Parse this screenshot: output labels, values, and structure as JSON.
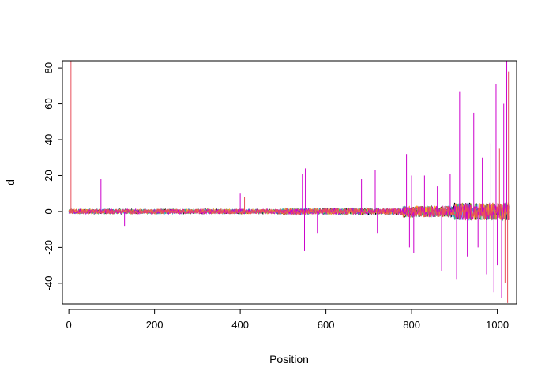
{
  "chart_data": {
    "type": "line",
    "title": "",
    "xlabel": "Position",
    "ylabel": "d",
    "xlim": [
      -15,
      1045
    ],
    "ylim": [
      -51.5,
      84
    ],
    "x_ticks": [
      0,
      200,
      400,
      600,
      800,
      1000
    ],
    "y_ticks": [
      -40,
      -20,
      0,
      20,
      40,
      60,
      80
    ],
    "x_tick_labels": [
      "0",
      "200",
      "400",
      "600",
      "800",
      "1000"
    ],
    "y_tick_labels": [
      "-40",
      "-20",
      "0",
      "20",
      "40",
      "60",
      "80"
    ],
    "n_positions": 1028,
    "grid": false,
    "legend": "none",
    "baseline_level": 0,
    "series": [
      {
        "color": "#000000"
      },
      {
        "color": "#2e9fdf"
      },
      {
        "color": "#3cb371"
      },
      {
        "color": "#f5a623"
      },
      {
        "color": "#cc00cc"
      },
      {
        "color": "#e8505b"
      }
    ],
    "spikes": [
      {
        "x": 5,
        "y": 84,
        "series": 5
      },
      {
        "x": 75,
        "y": 18,
        "series": 4
      },
      {
        "x": 130,
        "y": -8,
        "series": 4
      },
      {
        "x": 400,
        "y": 10,
        "series": 4
      },
      {
        "x": 410,
        "y": 8,
        "series": 5
      },
      {
        "x": 545,
        "y": 21,
        "series": 4
      },
      {
        "x": 550,
        "y": -22,
        "series": 4
      },
      {
        "x": 552,
        "y": 24,
        "series": 4
      },
      {
        "x": 580,
        "y": -12,
        "series": 4
      },
      {
        "x": 683,
        "y": 18,
        "series": 4
      },
      {
        "x": 715,
        "y": 23,
        "series": 4
      },
      {
        "x": 720,
        "y": -12,
        "series": 4
      },
      {
        "x": 788,
        "y": 32,
        "series": 4
      },
      {
        "x": 795,
        "y": -20,
        "series": 4
      },
      {
        "x": 800,
        "y": 20,
        "series": 4
      },
      {
        "x": 805,
        "y": -23,
        "series": 4
      },
      {
        "x": 830,
        "y": 20,
        "series": 4
      },
      {
        "x": 845,
        "y": -18,
        "series": 4
      },
      {
        "x": 860,
        "y": 14,
        "series": 4
      },
      {
        "x": 870,
        "y": -33,
        "series": 4
      },
      {
        "x": 890,
        "y": 21,
        "series": 4
      },
      {
        "x": 905,
        "y": -38,
        "series": 4
      },
      {
        "x": 912,
        "y": 67,
        "series": 4
      },
      {
        "x": 930,
        "y": -25,
        "series": 4
      },
      {
        "x": 945,
        "y": 55,
        "series": 4
      },
      {
        "x": 955,
        "y": -20,
        "series": 4
      },
      {
        "x": 965,
        "y": 30,
        "series": 4
      },
      {
        "x": 975,
        "y": -35,
        "series": 4
      },
      {
        "x": 985,
        "y": 38,
        "series": 4
      },
      {
        "x": 992,
        "y": -45,
        "series": 4
      },
      {
        "x": 997,
        "y": 71,
        "series": 4
      },
      {
        "x": 1000,
        "y": -30,
        "series": 4
      },
      {
        "x": 1005,
        "y": 35,
        "series": 5
      },
      {
        "x": 1010,
        "y": -48,
        "series": 4
      },
      {
        "x": 1015,
        "y": 60,
        "series": 4
      },
      {
        "x": 1018,
        "y": -40,
        "series": 5
      },
      {
        "x": 1022,
        "y": 84,
        "series": 4
      },
      {
        "x": 1024,
        "y": -51,
        "series": 5
      },
      {
        "x": 1026,
        "y": 78,
        "series": 5
      }
    ]
  }
}
